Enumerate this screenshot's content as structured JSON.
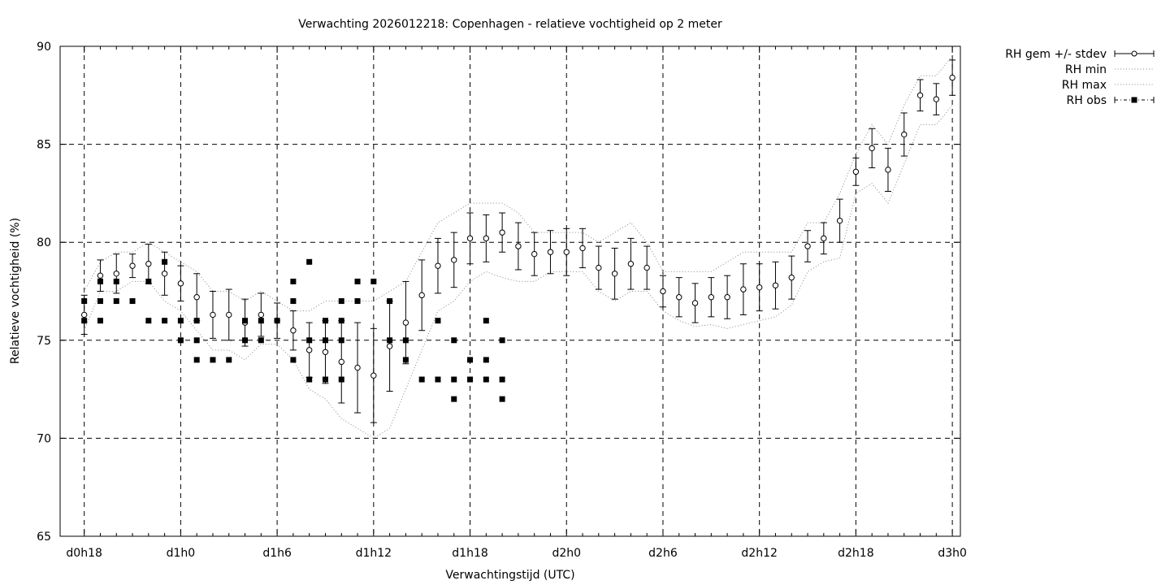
{
  "chart_data": {
    "type": "scatter",
    "title": "Verwachting 2026012218: Copenhagen - relatieve vochtigheid op 2 meter",
    "xlabel": "Verwachtingstijd (UTC)",
    "ylabel": "Relatieve vochtigheid (%)",
    "xlim": [
      -1.5,
      54.5
    ],
    "ylim": [
      65,
      90
    ],
    "x_unit": "forecast hours since d0h18",
    "x_ticks": [
      {
        "x": 0,
        "label": "d0h18"
      },
      {
        "x": 6,
        "label": "d1h0"
      },
      {
        "x": 12,
        "label": "d1h6"
      },
      {
        "x": 18,
        "label": "d1h12"
      },
      {
        "x": 24,
        "label": "d1h18"
      },
      {
        "x": 30,
        "label": "d2h0"
      },
      {
        "x": 36,
        "label": "d2h6"
      },
      {
        "x": 42,
        "label": "d2h12"
      },
      {
        "x": 48,
        "label": "d2h18"
      },
      {
        "x": 54,
        "label": "d3h0"
      }
    ],
    "y_ticks": [
      65,
      70,
      75,
      80,
      85,
      90
    ],
    "grid": "dashed, at major ticks",
    "legend_position": "outside top-right",
    "legend": [
      "RH gem +/- stdev",
      "RH min",
      "RH max",
      "RH obs"
    ],
    "series": [
      {
        "name": "RH gem +/- stdev",
        "style": "open circle with error bars",
        "x": [
          0,
          1,
          2,
          3,
          4,
          5,
          6,
          7,
          8,
          9,
          10,
          11,
          12,
          13,
          14,
          15,
          16,
          17,
          18,
          19,
          20,
          21,
          22,
          23,
          24,
          25,
          26,
          27,
          28,
          29,
          30,
          31,
          32,
          33,
          34,
          35,
          36,
          37,
          38,
          39,
          40,
          41,
          42,
          43,
          44,
          45,
          46,
          47,
          48,
          49,
          50,
          51,
          52,
          53,
          54
        ],
        "mean": [
          76.3,
          78.3,
          78.4,
          78.8,
          78.9,
          78.4,
          77.9,
          77.2,
          76.3,
          76.3,
          75.9,
          76.3,
          76.0,
          75.5,
          74.5,
          74.4,
          73.9,
          73.6,
          73.2,
          74.7,
          75.9,
          77.3,
          78.8,
          79.1,
          80.2,
          80.2,
          80.5,
          79.8,
          79.4,
          79.5,
          79.5,
          79.7,
          78.7,
          78.4,
          78.9,
          78.7,
          77.5,
          77.2,
          76.9,
          77.2,
          77.2,
          77.6,
          77.7,
          77.8,
          78.2,
          79.8,
          80.2,
          81.1,
          83.6,
          84.8,
          83.7,
          85.5,
          87.5,
          87.3,
          88.4
        ],
        "stdev": [
          1.0,
          0.8,
          1.0,
          0.6,
          1.0,
          1.1,
          0.9,
          1.2,
          1.2,
          1.3,
          1.2,
          1.1,
          0.9,
          1.0,
          1.4,
          1.6,
          2.1,
          2.3,
          2.4,
          2.3,
          2.1,
          1.8,
          1.4,
          1.4,
          1.3,
          1.2,
          1.0,
          1.2,
          1.1,
          1.1,
          1.2,
          1.0,
          1.1,
          1.3,
          1.3,
          1.1,
          0.8,
          1.0,
          1.0,
          1.0,
          1.1,
          1.3,
          1.2,
          1.2,
          1.1,
          0.8,
          0.8,
          1.1,
          0.7,
          1.0,
          1.1,
          1.1,
          0.8,
          0.8,
          0.9
        ]
      },
      {
        "name": "RH min",
        "style": "dotted line",
        "x": [
          0,
          1,
          2,
          3,
          4,
          5,
          6,
          7,
          8,
          9,
          10,
          11,
          12,
          13,
          14,
          15,
          16,
          17,
          18,
          19,
          20,
          21,
          22,
          23,
          24,
          25,
          26,
          27,
          28,
          29,
          30,
          31,
          32,
          33,
          34,
          35,
          36,
          37,
          38,
          39,
          40,
          41,
          42,
          43,
          44,
          45,
          46,
          47,
          48,
          49,
          50,
          51,
          52,
          53,
          54
        ],
        "values": [
          75.5,
          77.5,
          77.5,
          78.0,
          78.0,
          77.0,
          76.5,
          75.5,
          74.5,
          74.5,
          74.0,
          74.8,
          74.8,
          74.0,
          72.5,
          72.0,
          71.0,
          70.5,
          70.0,
          70.5,
          72.5,
          74.5,
          76.5,
          77.0,
          78.0,
          78.5,
          78.2,
          78.0,
          78.0,
          78.5,
          78.5,
          78.5,
          77.5,
          77.0,
          77.5,
          77.5,
          76.5,
          76.0,
          75.7,
          75.8,
          75.6,
          75.8,
          76.0,
          76.2,
          76.8,
          78.5,
          79.0,
          79.2,
          82.5,
          83.0,
          82.0,
          84.0,
          86.0,
          86.0,
          87.0
        ]
      },
      {
        "name": "RH max",
        "style": "dotted line",
        "x": [
          0,
          1,
          2,
          3,
          4,
          5,
          6,
          7,
          8,
          9,
          10,
          11,
          12,
          13,
          14,
          15,
          16,
          17,
          18,
          19,
          20,
          21,
          22,
          23,
          24,
          25,
          26,
          27,
          28,
          29,
          30,
          31,
          32,
          33,
          34,
          35,
          36,
          37,
          38,
          39,
          40,
          41,
          42,
          43,
          44,
          45,
          46,
          47,
          48,
          49,
          50,
          51,
          52,
          53,
          54
        ],
        "values": [
          77.5,
          79.0,
          79.5,
          79.5,
          80.0,
          79.5,
          79.0,
          78.5,
          77.5,
          77.5,
          77.0,
          77.5,
          77.0,
          76.5,
          76.5,
          77.0,
          77.0,
          77.0,
          77.0,
          77.5,
          78.0,
          79.5,
          81.0,
          81.5,
          82.0,
          82.0,
          82.0,
          81.5,
          80.5,
          80.5,
          80.5,
          80.5,
          80.0,
          80.5,
          81.0,
          80.0,
          78.5,
          78.5,
          78.5,
          78.5,
          79.0,
          79.5,
          79.5,
          79.5,
          79.5,
          81.0,
          81.0,
          82.5,
          84.5,
          86.0,
          85.0,
          87.0,
          88.5,
          88.5,
          89.5
        ]
      },
      {
        "name": "RH obs",
        "style": "filled square",
        "points": [
          [
            0,
            77
          ],
          [
            0,
            76
          ],
          [
            1,
            78
          ],
          [
            1,
            77
          ],
          [
            1,
            76
          ],
          [
            2,
            78
          ],
          [
            2,
            77
          ],
          [
            3,
            77
          ],
          [
            4,
            78
          ],
          [
            4,
            76
          ],
          [
            5,
            79
          ],
          [
            5,
            76
          ],
          [
            6,
            76
          ],
          [
            6,
            75
          ],
          [
            7,
            76
          ],
          [
            7,
            75
          ],
          [
            7,
            74
          ],
          [
            8,
            74
          ],
          [
            9,
            74
          ],
          [
            10,
            76
          ],
          [
            10,
            75
          ],
          [
            11,
            76
          ],
          [
            11,
            75
          ],
          [
            12,
            76
          ],
          [
            13,
            78
          ],
          [
            13,
            77
          ],
          [
            13,
            74
          ],
          [
            14,
            79
          ],
          [
            14,
            75
          ],
          [
            14,
            73
          ],
          [
            15,
            76
          ],
          [
            15,
            75
          ],
          [
            15,
            73
          ],
          [
            16,
            77
          ],
          [
            16,
            76
          ],
          [
            16,
            75
          ],
          [
            16,
            73
          ],
          [
            17,
            78
          ],
          [
            17,
            77
          ],
          [
            18,
            78
          ],
          [
            19,
            77
          ],
          [
            19,
            75
          ],
          [
            20,
            75
          ],
          [
            20,
            74
          ],
          [
            21,
            73
          ],
          [
            22,
            76
          ],
          [
            22,
            73
          ],
          [
            23,
            75
          ],
          [
            23,
            73
          ],
          [
            23,
            72
          ],
          [
            24,
            74
          ],
          [
            24,
            73
          ],
          [
            25,
            76
          ],
          [
            25,
            74
          ],
          [
            25,
            73
          ],
          [
            26,
            75
          ],
          [
            26,
            73
          ],
          [
            26,
            72
          ]
        ]
      }
    ]
  }
}
